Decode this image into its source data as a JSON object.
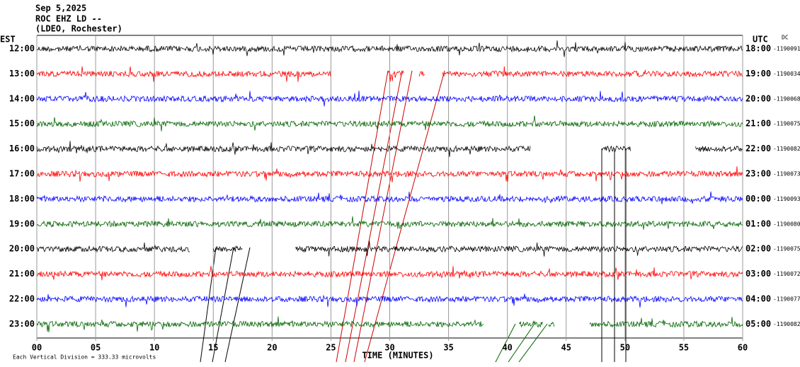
{
  "chart_data": {
    "type": "helicorder",
    "title_lines": [
      "Sep 5,2025",
      "ROC EHZ LD --",
      "(LDEO, Rochester)"
    ],
    "left_label": "EST",
    "right_label": "UTC",
    "dc_label": "DC",
    "xlabel": "TIME (MINUTES)",
    "footer": "Each Vertical Division =  333.33 microvolts",
    "xlim": [
      0,
      60
    ],
    "xticks": [
      {
        "value": 0,
        "label": "00"
      },
      {
        "value": 5,
        "label": "05"
      },
      10,
      15,
      20,
      25,
      30,
      35,
      40,
      45,
      50,
      55,
      60
    ],
    "rows": [
      {
        "est": "12:00",
        "utc": "18:00",
        "dc": -1190091,
        "color": "#000000",
        "segments": [
          [
            0,
            60
          ]
        ]
      },
      {
        "est": "13:00",
        "utc": "19:00",
        "dc": -1190034,
        "color": "#ff0000",
        "segments": [
          [
            0,
            25
          ],
          [
            29.8,
            31.2
          ],
          [
            32.5,
            33
          ],
          [
            34.5,
            60
          ]
        ]
      },
      {
        "est": "14:00",
        "utc": "20:00",
        "dc": -1190068,
        "color": "#0000ff",
        "segments": [
          [
            0,
            60
          ]
        ]
      },
      {
        "est": "15:00",
        "utc": "21:00",
        "dc": -1190075,
        "color": "#006400",
        "segments": [
          [
            0,
            60
          ]
        ]
      },
      {
        "est": "16:00",
        "utc": "22:00",
        "dc": -1190082,
        "color": "#000000",
        "segments": [
          [
            0,
            42
          ],
          [
            48,
            50.5
          ],
          [
            56,
            60
          ]
        ]
      },
      {
        "est": "17:00",
        "utc": "23:00",
        "dc": -1190073,
        "color": "#ff0000",
        "segments": [
          [
            0,
            60
          ]
        ]
      },
      {
        "est": "18:00",
        "utc": "00:00",
        "dc": -1190093,
        "color": "#0000ff",
        "segments": [
          [
            0,
            60
          ]
        ]
      },
      {
        "est": "19:00",
        "utc": "01:00",
        "dc": -1190080,
        "color": "#006400",
        "segments": [
          [
            0,
            60
          ]
        ]
      },
      {
        "est": "20:00",
        "utc": "02:00",
        "dc": -1190075,
        "color": "#000000",
        "segments": [
          [
            0,
            13
          ],
          [
            15,
            17.5
          ],
          [
            22,
            60
          ]
        ]
      },
      {
        "est": "21:00",
        "utc": "03:00",
        "dc": -1190072,
        "color": "#ff0000",
        "segments": [
          [
            0,
            60
          ]
        ]
      },
      {
        "est": "22:00",
        "utc": "04:00",
        "dc": -1190077,
        "color": "#0000ff",
        "segments": [
          [
            0,
            60
          ]
        ]
      },
      {
        "est": "23:00",
        "utc": "05:00",
        "dc": -1190082,
        "color": "#006400",
        "segments": [
          [
            0,
            38
          ],
          [
            41,
            43
          ],
          [
            43.5,
            44
          ],
          [
            47,
            60
          ]
        ]
      }
    ]
  }
}
